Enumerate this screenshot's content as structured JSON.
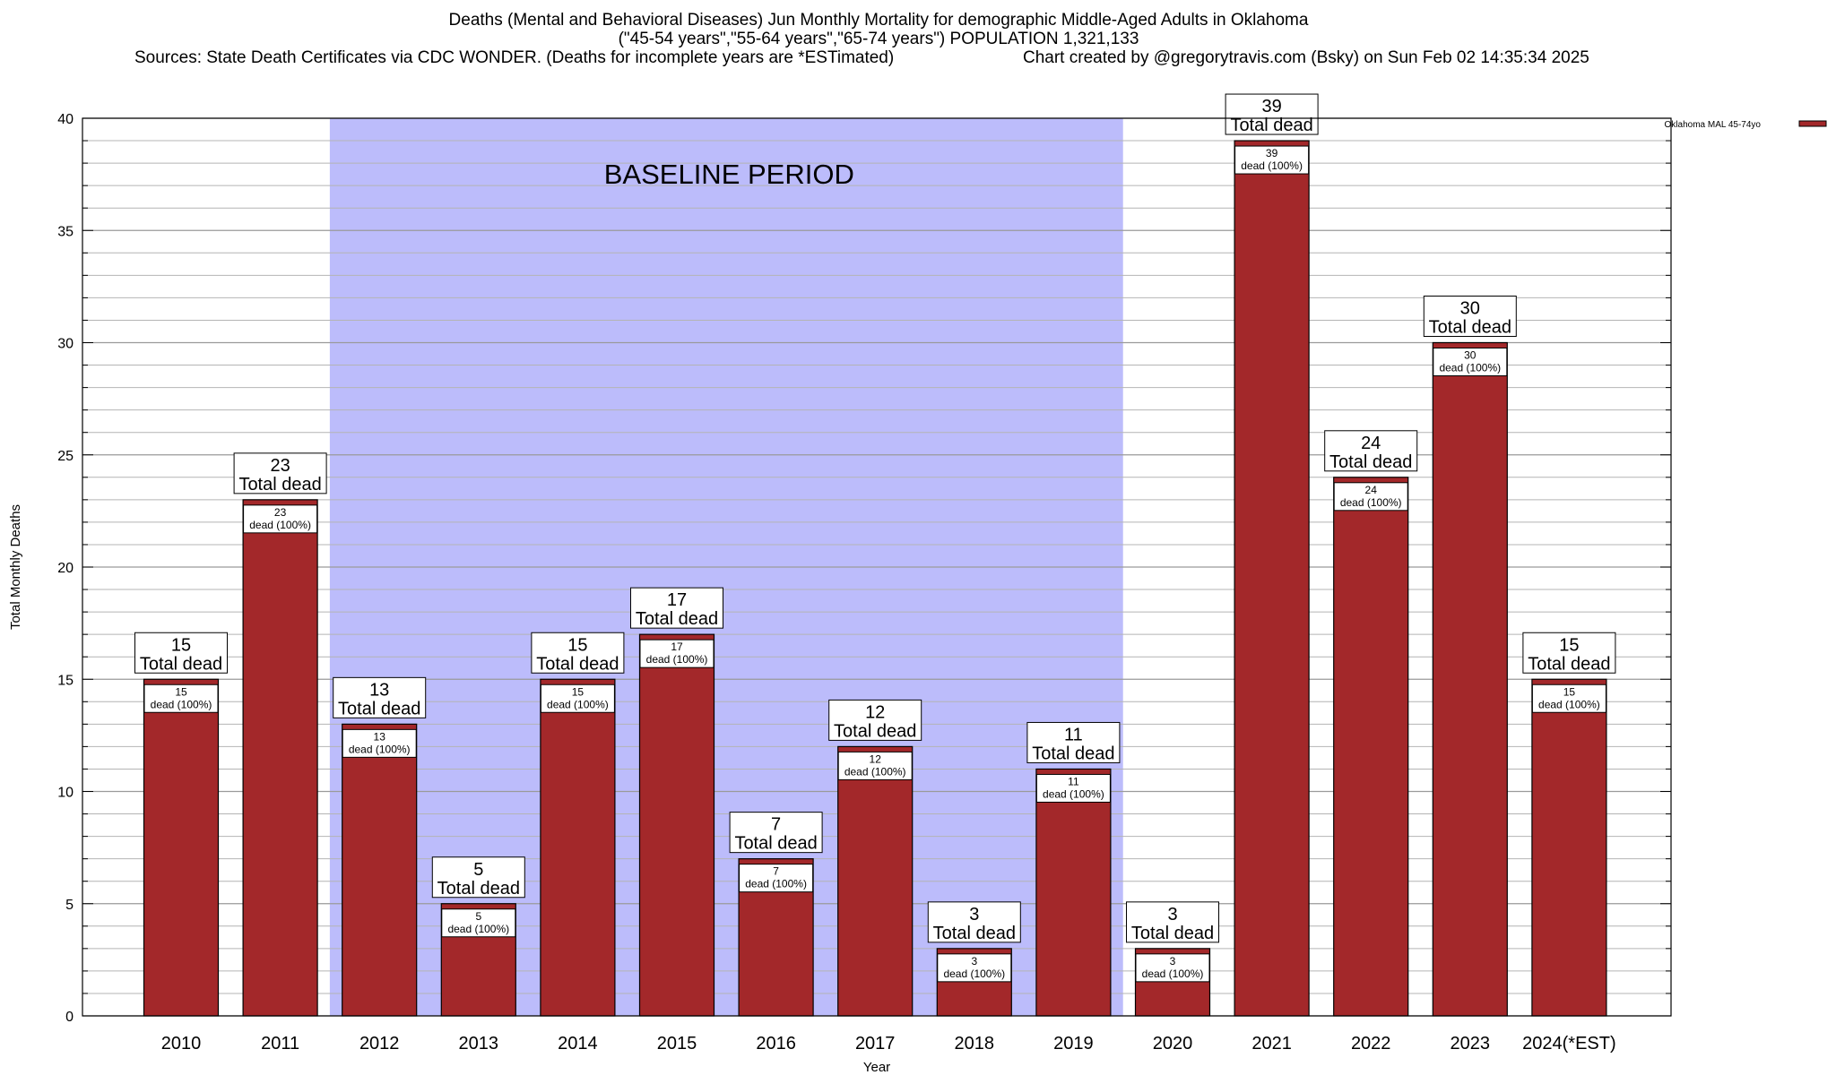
{
  "header": {
    "title": "Deaths (Mental and Behavioral Diseases) Jun Monthly Mortality for demographic Middle-Aged Adults in Oklahoma",
    "subtitle": "(\"45-54 years\",\"55-64 years\",\"65-74 years\") POPULATION 1,321,133",
    "source": "Sources: State Death Certificates via CDC WONDER. (Deaths for incomplete years are *ESTimated)",
    "credit": "Chart created by @gregorytravis.com (Bsky) on Sun Feb 02 14:35:34 2025"
  },
  "chart_data": {
    "type": "bar",
    "title": "Deaths (Mental and Behavioral Diseases) Jun Monthly Mortality for demographic Middle-Aged Adults in Oklahoma",
    "xlabel": "Year",
    "ylabel": "Total Monthly Deaths",
    "ylim": [
      0,
      40
    ],
    "yticks": [
      0,
      5,
      10,
      15,
      20,
      25,
      30,
      35,
      40
    ],
    "grid": true,
    "legend_position": "top-right",
    "categories": [
      "2010",
      "2011",
      "2012",
      "2013",
      "2014",
      "2015",
      "2016",
      "2017",
      "2018",
      "2019",
      "2020",
      "2021",
      "2022",
      "2023",
      "2024(*EST)"
    ],
    "series": [
      {
        "name": "Oklahoma MAL 45-74yo",
        "color": "#a3282a",
        "values": [
          15,
          23,
          13,
          5,
          15,
          17,
          7,
          12,
          3,
          11,
          3,
          39,
          24,
          30,
          15
        ]
      }
    ],
    "top_labels": [
      "15\nTotal dead",
      "23\nTotal dead",
      "13\nTotal dead",
      "5\nTotal dead",
      "15\nTotal dead",
      "17\nTotal dead",
      "7\nTotal dead",
      "12\nTotal dead",
      "3\nTotal dead",
      "11\nTotal dead",
      "3\nTotal dead",
      "39\nTotal dead",
      "24\nTotal dead",
      "30\nTotal dead",
      "15\nTotal dead"
    ],
    "inner_labels": [
      "15\ndead (100%)",
      "23\ndead (100%)",
      "13\ndead (100%)",
      "5\ndead (100%)",
      "15\ndead (100%)",
      "17\ndead (100%)",
      "7\ndead (100%)",
      "12\ndead (100%)",
      "3\ndead (100%)",
      "11\ndead (100%)",
      "3\ndead (100%)",
      "39\ndead (100%)",
      "24\ndead (100%)",
      "30\ndead (100%)",
      "15\ndead (100%)"
    ],
    "baseline_region": {
      "label": "BASELINE PERIOD",
      "from_category": "2012",
      "to_category": "2019",
      "color": "#bcbcfb"
    }
  }
}
